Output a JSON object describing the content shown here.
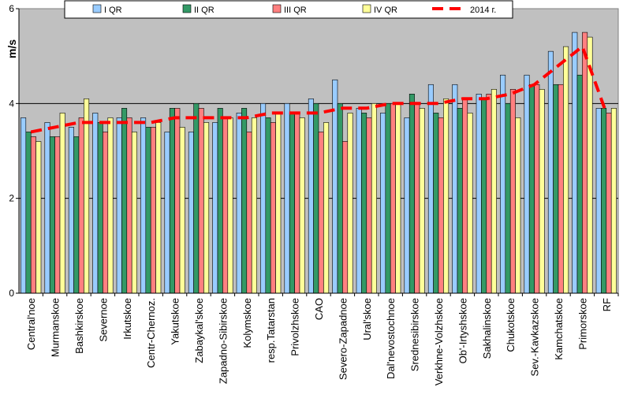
{
  "chart_data": {
    "type": "bar",
    "title": "",
    "xlabel": "",
    "ylabel": "m/s",
    "ylim": [
      0,
      6
    ],
    "yticks": [
      "0",
      "2",
      "4",
      "6"
    ],
    "grid": true,
    "legend_position": "top",
    "categories": [
      "Central'noe",
      "Murmanskoe",
      "Bashkirskoe",
      "Severnoe",
      "Irkutskoe",
      "Centr-Chernoz.",
      "Yakutskoe",
      "Zabaykal'skoe",
      "Zapadno-Sibirskoe",
      "Kolymskoe",
      "resp.Tatarstan",
      "Privolzhskoe",
      "CAO",
      "Severo-Zapadnoe",
      "Ural'skoe",
      "Dal'nevostochnoe",
      "Srednesibirskoe",
      "Verkhne-Volzhskoe",
      "Ob'-Irtyshskoe",
      "Sakhalinskoe",
      "Chukotskoe",
      "Sev.-Kavkazskoe",
      "Kamchatskoe",
      "Primorskoe",
      "RF"
    ],
    "series": [
      {
        "name": "I QR",
        "type": "bar",
        "color": "#99ccff",
        "values": [
          3.7,
          3.6,
          3.5,
          3.8,
          3.7,
          3.7,
          3.4,
          3.4,
          3.6,
          3.8,
          4.0,
          4.0,
          4.1,
          4.5,
          3.9,
          3.8,
          3.7,
          4.4,
          4.4,
          4.2,
          4.6,
          4.6,
          5.1,
          5.5,
          3.9
        ]
      },
      {
        "name": "II QR",
        "type": "bar",
        "color": "#339966",
        "values": [
          3.4,
          3.3,
          3.3,
          3.6,
          3.9,
          3.5,
          3.9,
          4.0,
          3.9,
          3.9,
          3.7,
          3.8,
          4.0,
          4.0,
          3.8,
          4.0,
          4.2,
          3.8,
          3.9,
          4.1,
          4.0,
          4.4,
          4.4,
          4.6,
          3.9
        ]
      },
      {
        "name": "III QR",
        "type": "bar",
        "color": "#ff8080",
        "values": [
          3.3,
          3.3,
          3.7,
          3.4,
          3.7,
          3.5,
          3.9,
          3.9,
          3.7,
          3.4,
          3.6,
          3.8,
          3.4,
          3.2,
          3.7,
          4.0,
          4.0,
          3.7,
          4.1,
          4.2,
          4.3,
          4.4,
          4.4,
          5.5,
          3.8
        ]
      },
      {
        "name": "IV QR",
        "type": "bar",
        "color": "#ffff99",
        "values": [
          3.2,
          3.8,
          4.1,
          3.7,
          3.4,
          3.6,
          3.5,
          3.6,
          3.7,
          3.7,
          3.8,
          3.7,
          3.6,
          3.8,
          4.0,
          4.0,
          3.9,
          4.1,
          3.8,
          4.3,
          3.7,
          4.3,
          5.2,
          5.4,
          3.9
        ]
      },
      {
        "name": "2014 г.",
        "type": "line",
        "color": "#ff0000",
        "values": [
          3.4,
          3.5,
          3.6,
          3.6,
          3.6,
          3.6,
          3.7,
          3.7,
          3.7,
          3.7,
          3.8,
          3.8,
          3.8,
          3.9,
          3.9,
          4.0,
          4.0,
          4.0,
          4.1,
          4.1,
          4.2,
          4.4,
          4.8,
          5.2,
          3.8
        ]
      }
    ]
  }
}
